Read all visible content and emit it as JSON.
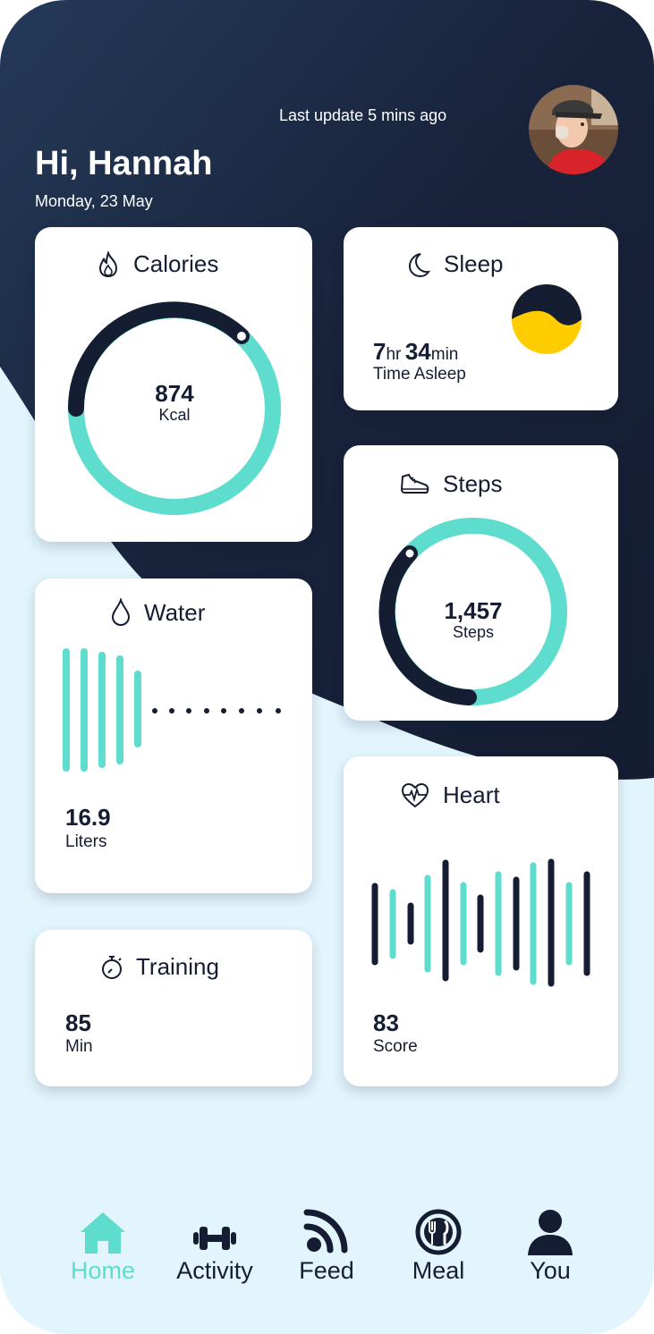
{
  "header": {
    "last_update": "Last update 5 mins ago",
    "greeting": "Hi, Hannah",
    "date": "Monday, 23 May"
  },
  "colors": {
    "navy": "#141d31",
    "teal": "#5edccd",
    "yellow": "#ffcc00",
    "light_bg": "#e2f5fd",
    "card": "#ffffff"
  },
  "cards": {
    "calories": {
      "title": "Calories",
      "icon": "flame-icon",
      "value": "874",
      "unit": "Kcal",
      "progress": 0.65
    },
    "sleep": {
      "title": "Sleep",
      "icon": "moon-icon",
      "hours": "7",
      "hours_unit": "hr",
      "minutes": "34",
      "minutes_unit": "min",
      "label": "Time Asleep"
    },
    "steps": {
      "title": "Steps",
      "icon": "sneaker-icon",
      "value": "1,457",
      "unit": "Steps",
      "progress": 0.62
    },
    "water": {
      "title": "Water",
      "icon": "droplet-icon",
      "value": "16.9",
      "unit": "Liters",
      "filled_bars": 5,
      "remaining_dots": 8
    },
    "heart": {
      "title": "Heart",
      "icon": "heart-pulse-icon",
      "value": "83",
      "unit": "Score"
    },
    "training": {
      "title": "Training",
      "icon": "stopwatch-icon",
      "value": "85",
      "unit": "Min"
    }
  },
  "nav": {
    "items": [
      {
        "label": "Home",
        "icon": "home-icon",
        "active": true
      },
      {
        "label": "Activity",
        "icon": "dumbbell-icon",
        "active": false
      },
      {
        "label": "Feed",
        "icon": "rss-icon",
        "active": false
      },
      {
        "label": "Meal",
        "icon": "fork-knife-icon",
        "active": false
      },
      {
        "label": "You",
        "icon": "user-icon",
        "active": false
      }
    ]
  }
}
